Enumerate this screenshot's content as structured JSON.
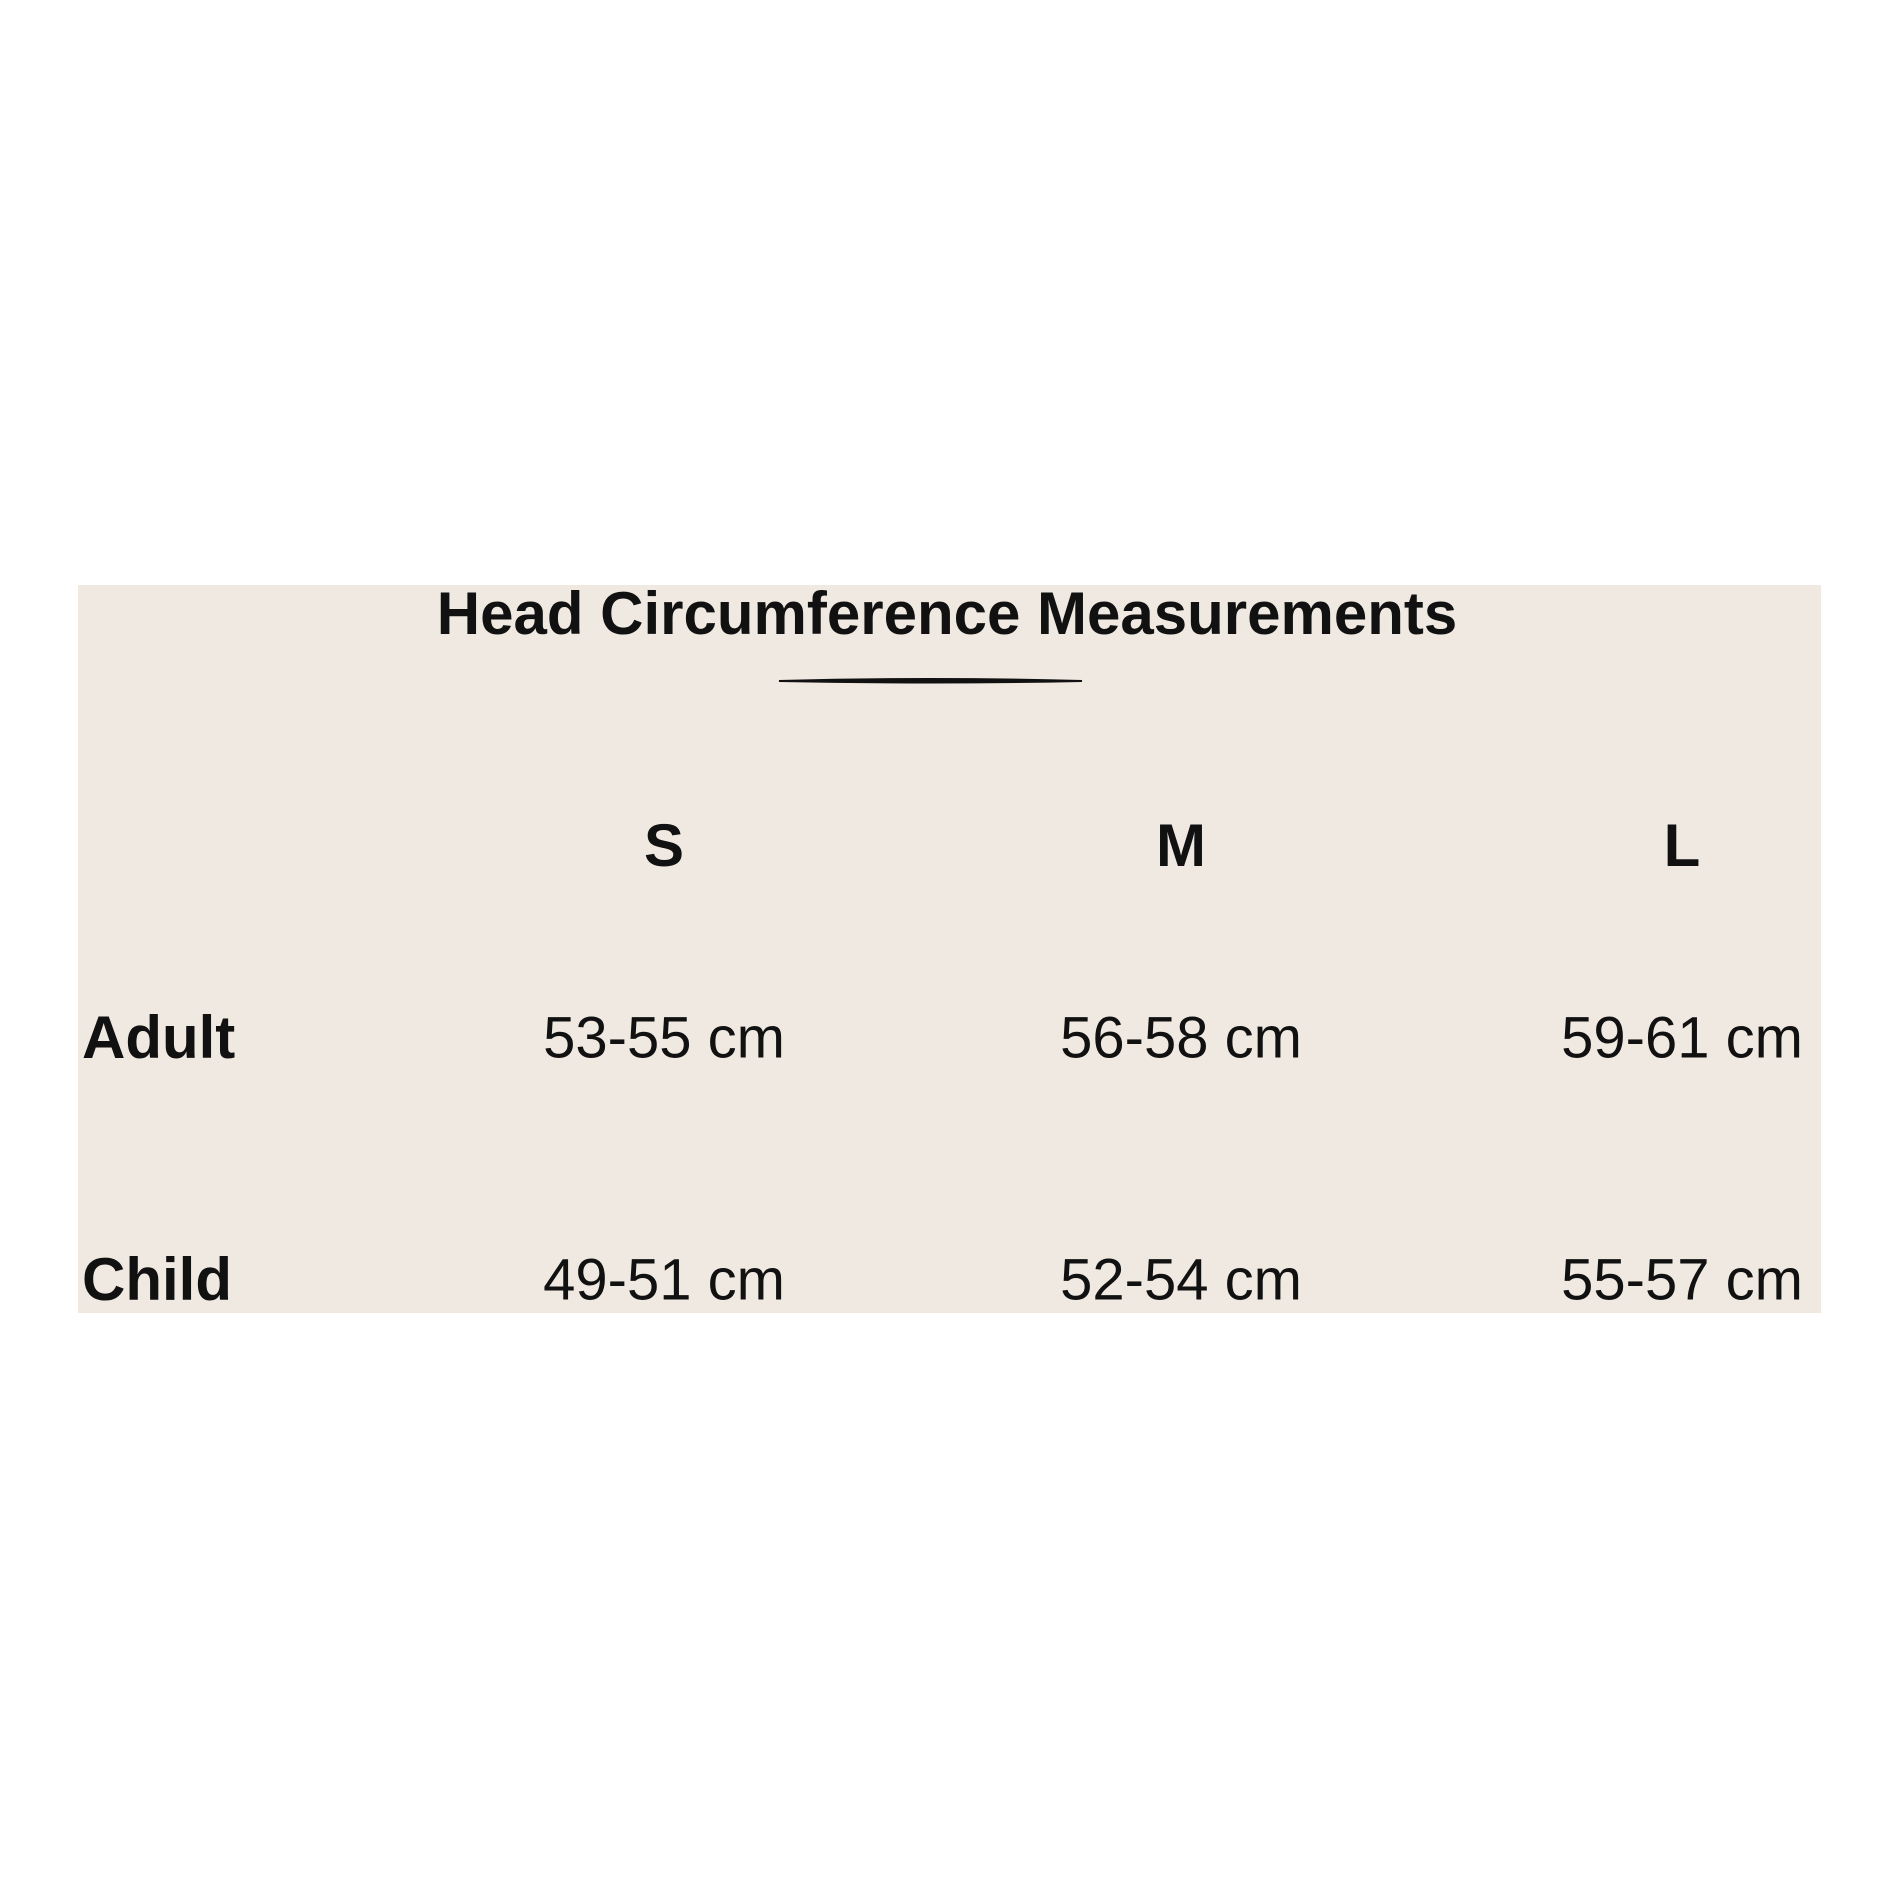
{
  "title": "Head Circumference Measurements",
  "table": {
    "columns": [
      "S",
      "M",
      "L"
    ],
    "rows": [
      {
        "label": "Adult",
        "cells": [
          "53-55 cm",
          "56-58 cm",
          "59-61 cm"
        ]
      },
      {
        "label": "Child",
        "cells": [
          "49-51 cm",
          "52-54 cm",
          "55-57 cm"
        ]
      }
    ]
  }
}
